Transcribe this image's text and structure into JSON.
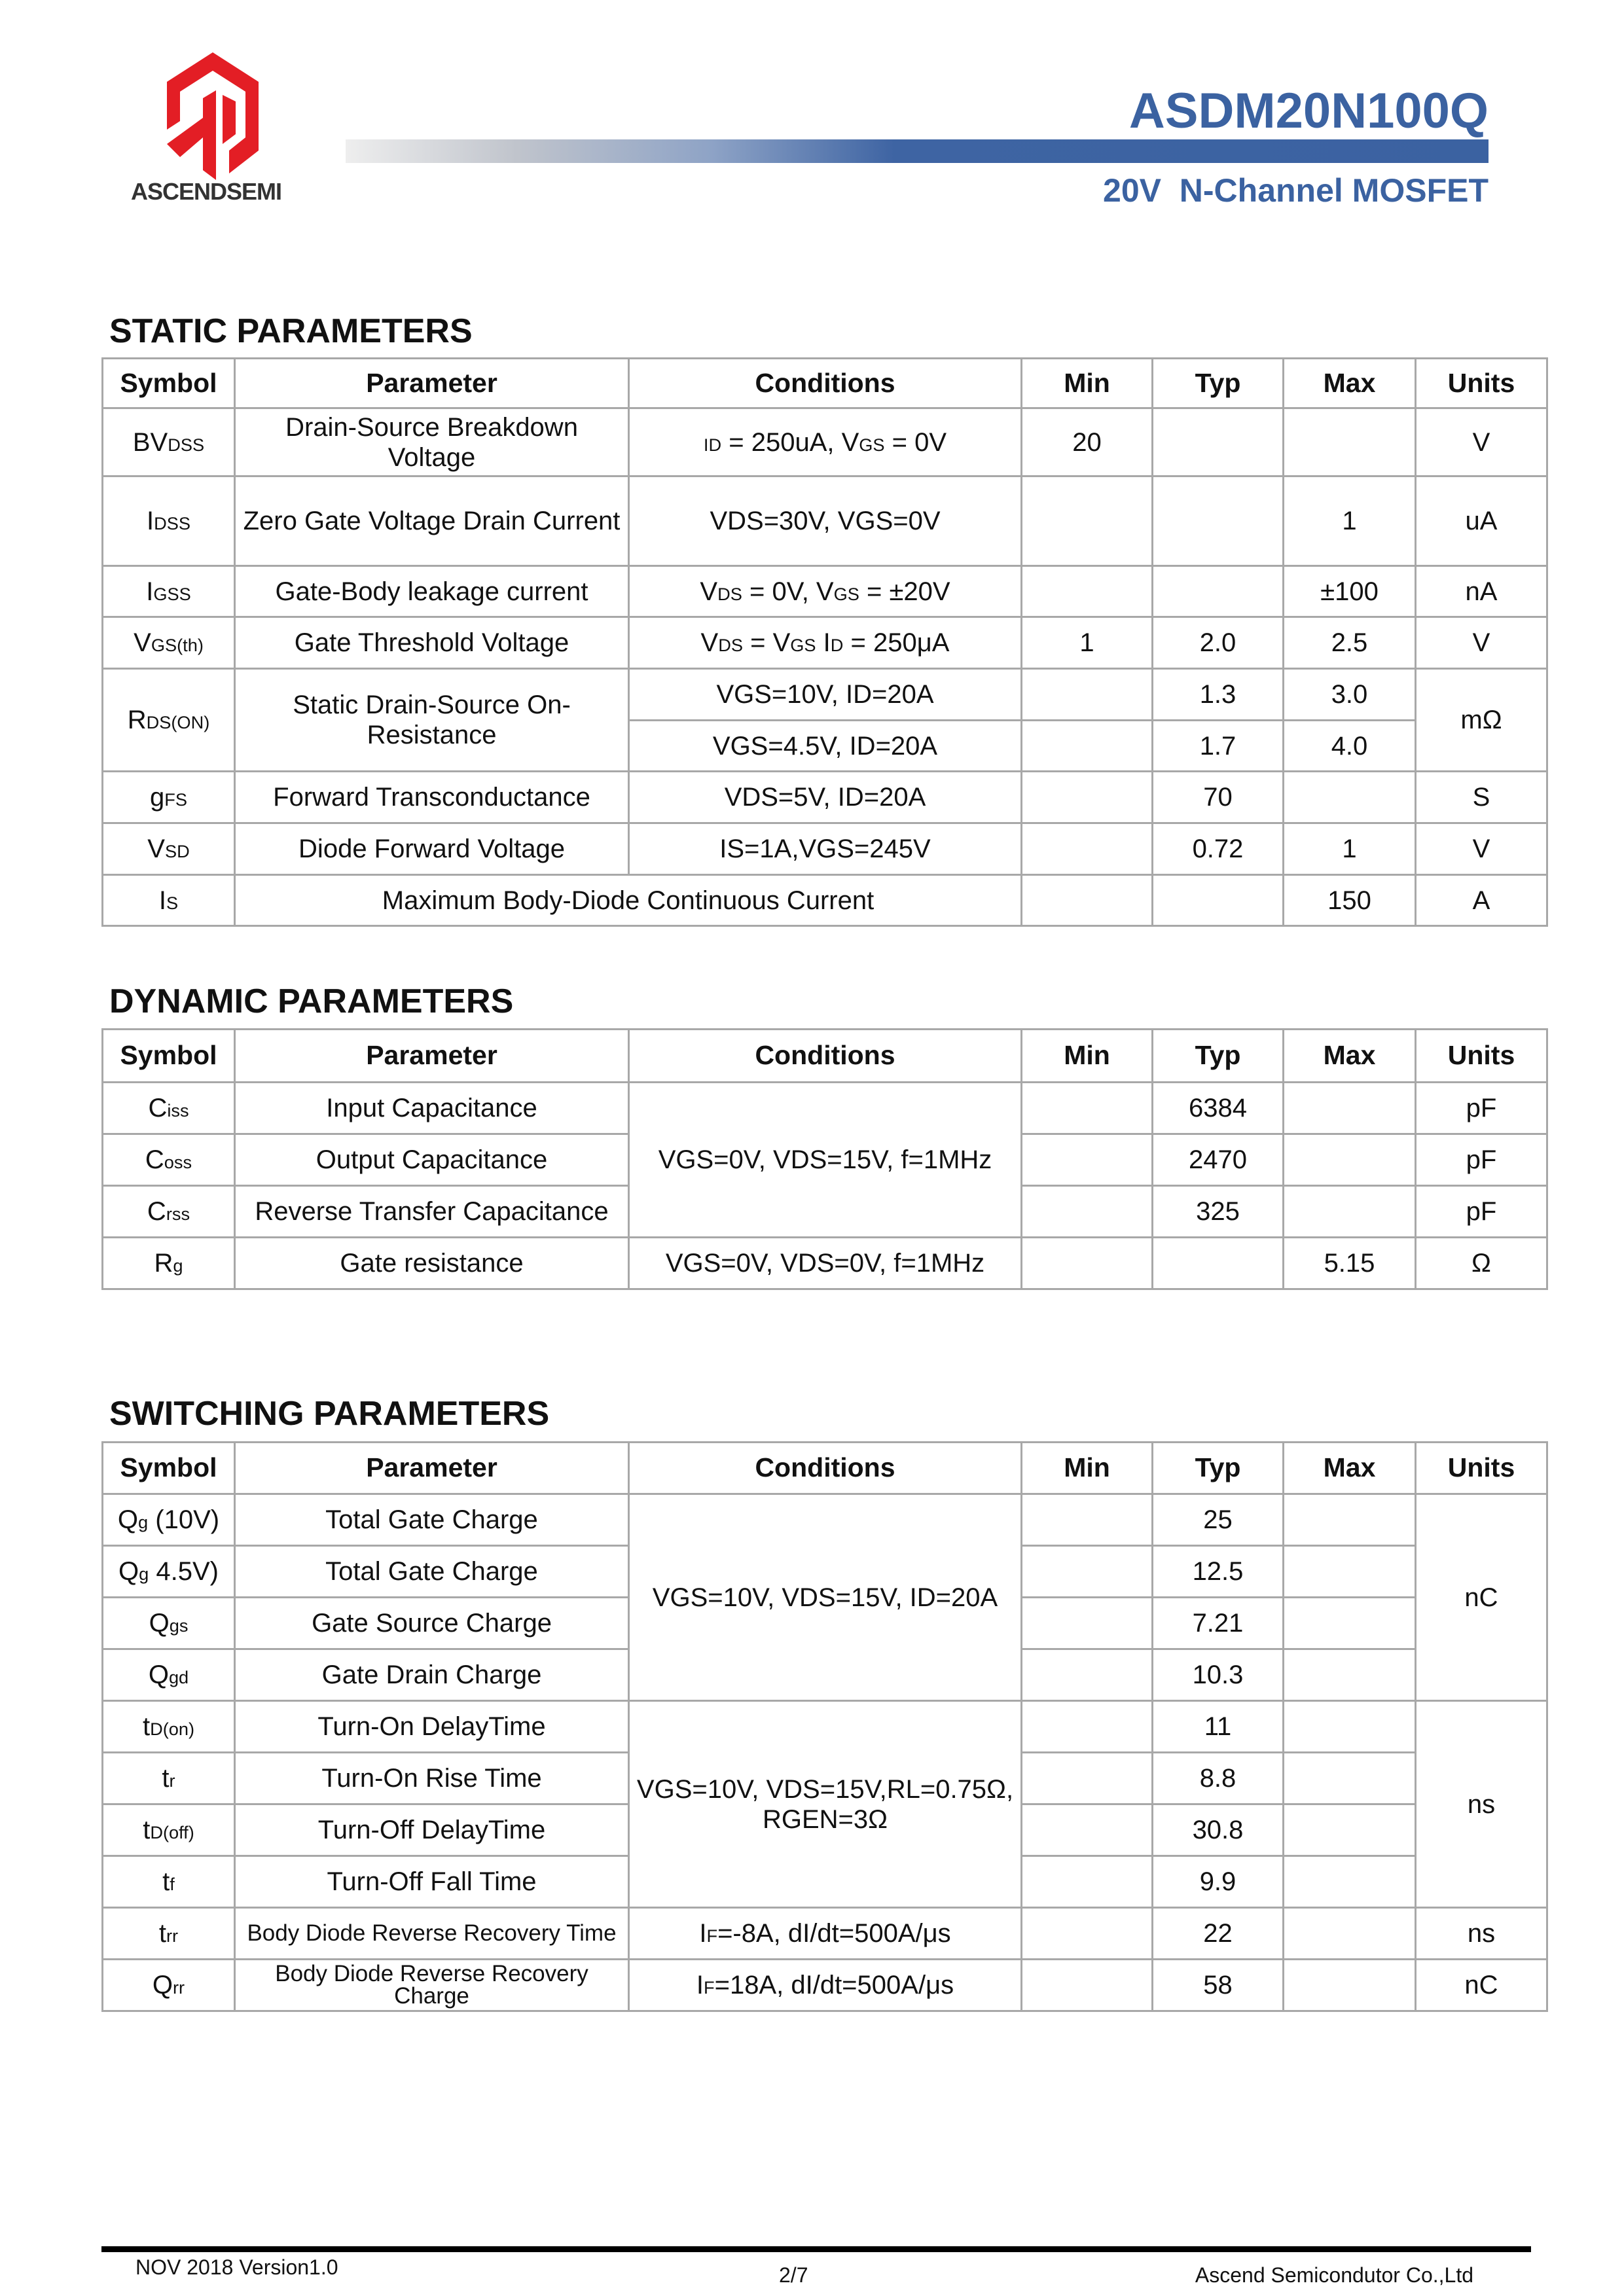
{
  "header": {
    "logo_text": "ASCENDSEMI",
    "part_number": "ASDM20N100Q",
    "subtitle": "20V  N-Channel MOSFET",
    "brand_colors": {
      "logo_red": "#e31e25",
      "title_blue": "#3b62a1"
    }
  },
  "columns": [
    "Symbol",
    "Parameter",
    "Conditions",
    "Min",
    "Typ",
    "Max",
    "Units"
  ],
  "static": {
    "title": "STATIC PARAMETERS",
    "rows": [
      {
        "symbol": [
          {
            "text": "BV"
          },
          {
            "sub": "DSS"
          }
        ],
        "parameter": "Drain-Source Breakdown Voltage",
        "conditions": [
          {
            "sub": "I"
          },
          {
            "sub": "D"
          },
          {
            "text": " = 250uA, V"
          },
          {
            "sub": "GS"
          },
          {
            "text": " = 0V"
          }
        ],
        "min": "20",
        "units": "V"
      },
      {
        "symbol": [
          {
            "text": "I"
          },
          {
            "sub": "DSS"
          }
        ],
        "parameter": "Zero Gate Voltage Drain Current",
        "conditions": "VDS=30V, VGS=0V",
        "max": "1",
        "units": "uA"
      },
      {
        "symbol": [
          {
            "text": "I"
          },
          {
            "sub": "GSS"
          }
        ],
        "parameter": "Gate-Body leakage current",
        "conditions": [
          {
            "text": "V"
          },
          {
            "sub": "DS"
          },
          {
            "text": " = 0V, V"
          },
          {
            "sub": "GS"
          },
          {
            "text": " = ±20V"
          }
        ],
        "max": "±100",
        "units": "nA"
      },
      {
        "symbol": [
          {
            "text": "V"
          },
          {
            "sub": "GS(th)"
          }
        ],
        "parameter": "Gate Threshold Voltage",
        "conditions": [
          {
            "text": "V"
          },
          {
            "sub": "DS"
          },
          {
            "text": " = V"
          },
          {
            "sub": "GS"
          },
          {
            "text": " I"
          },
          {
            "sub": "D"
          },
          {
            "text": " = 250μA"
          }
        ],
        "min": "1",
        "typ": "2.0",
        "max": "2.5",
        "units": "V"
      },
      {
        "symbol": [
          {
            "text": "R"
          },
          {
            "sub": "DS(ON)"
          }
        ],
        "parameter": "Static Drain-Source On-Resistance",
        "conditions": "VGS=10V, ID=20A",
        "typ": "1.3",
        "max": "3.0",
        "units": "mΩ"
      },
      {
        "conditions": "VGS=4.5V, ID=20A",
        "typ": "1.7",
        "max": "4.0"
      },
      {
        "symbol": [
          {
            "text": "g"
          },
          {
            "sub": "FS"
          }
        ],
        "parameter": "Forward Transconductance",
        "conditions": "VDS=5V, ID=20A",
        "typ": "70",
        "units": "S"
      },
      {
        "symbol": [
          {
            "text": "V"
          },
          {
            "sub": "SD"
          }
        ],
        "parameter": "Diode Forward Voltage",
        "conditions": "IS=1A,VGS=245V",
        "typ": "0.72",
        "max": "1",
        "units": "V"
      },
      {
        "symbol": [
          {
            "text": "I"
          },
          {
            "sub": "S"
          }
        ],
        "parameter": "Maximum Body-Diode Continuous Current",
        "max": "150",
        "units": "A"
      }
    ]
  },
  "dynamic": {
    "title": "DYNAMIC PARAMETERS",
    "rows": [
      {
        "symbol": [
          {
            "text": "C"
          },
          {
            "sub": "iss"
          }
        ],
        "parameter": "Input Capacitance",
        "conditions": "VGS=0V, VDS=15V, f=1MHz",
        "typ": "6384",
        "units": "pF"
      },
      {
        "symbol": [
          {
            "text": "C"
          },
          {
            "sub": "oss"
          }
        ],
        "parameter": "Output Capacitance",
        "typ": "2470",
        "units": "pF"
      },
      {
        "symbol": [
          {
            "text": "C"
          },
          {
            "sub": "rss"
          }
        ],
        "parameter": "Reverse Transfer Capacitance",
        "typ": "325",
        "units": "pF"
      },
      {
        "symbol": [
          {
            "text": "R"
          },
          {
            "sub": "g"
          }
        ],
        "parameter": "Gate resistance",
        "conditions": "VGS=0V, VDS=0V, f=1MHz",
        "max": "5.15",
        "units": "Ω"
      }
    ]
  },
  "switching": {
    "title": "SWITCHING PARAMETERS",
    "rows": [
      {
        "symbol": [
          {
            "text": "Q"
          },
          {
            "sub": "g"
          },
          {
            "text": " (10V)"
          }
        ],
        "parameter": "Total Gate Charge",
        "conditions": "VGS=10V, VDS=15V, ID=20A",
        "typ": "25",
        "units": "nC"
      },
      {
        "symbol": [
          {
            "text": "Q"
          },
          {
            "sub": "g"
          },
          {
            "text": " 4.5V)"
          }
        ],
        "parameter": "Total Gate Charge",
        "typ": "12.5"
      },
      {
        "symbol": [
          {
            "text": "Q"
          },
          {
            "sub": "gs"
          }
        ],
        "parameter": "Gate Source Charge",
        "typ": "7.21"
      },
      {
        "symbol": [
          {
            "text": "Q"
          },
          {
            "sub": "gd"
          }
        ],
        "parameter": "Gate Drain Charge",
        "typ": "10.3"
      },
      {
        "symbol": [
          {
            "text": "t"
          },
          {
            "sub": "D(on)"
          }
        ],
        "parameter": "Turn-On DelayTime",
        "conditions": "VGS=10V, VDS=15V,RL=0.75Ω, RGEN=3Ω",
        "typ": "11",
        "units": "ns"
      },
      {
        "symbol": [
          {
            "text": "t"
          },
          {
            "sub": "r"
          }
        ],
        "parameter": "Turn-On Rise Time",
        "typ": "8.8"
      },
      {
        "symbol": [
          {
            "text": "t"
          },
          {
            "sub": "D(off)"
          }
        ],
        "parameter": "Turn-Off DelayTime",
        "typ": "30.8"
      },
      {
        "symbol": [
          {
            "text": "t"
          },
          {
            "sub": "f"
          }
        ],
        "parameter": "Turn-Off Fall Time",
        "typ": "9.9"
      },
      {
        "symbol": [
          {
            "text": "t"
          },
          {
            "sub": "rr"
          }
        ],
        "parameter": "Body Diode Reverse Recovery Time",
        "conditions": [
          {
            "text": "I"
          },
          {
            "sub": "F"
          },
          {
            "text": "=-8A, dI/dt=500A/μs"
          }
        ],
        "typ": "22",
        "units": "ns"
      },
      {
        "symbol": [
          {
            "text": "Q"
          },
          {
            "sub": "rr"
          }
        ],
        "parameter": "Body Diode Reverse Recovery Charge",
        "conditions": [
          {
            "text": "I"
          },
          {
            "sub": "F"
          },
          {
            "text": "=18A, dI/dt=500A/μs"
          }
        ],
        "typ": "58",
        "units": "nC"
      }
    ]
  },
  "footer": {
    "left": "NOV 2018 Version1.0",
    "page": "2/7",
    "right": "Ascend Semicondutor Co.,Ltd"
  }
}
